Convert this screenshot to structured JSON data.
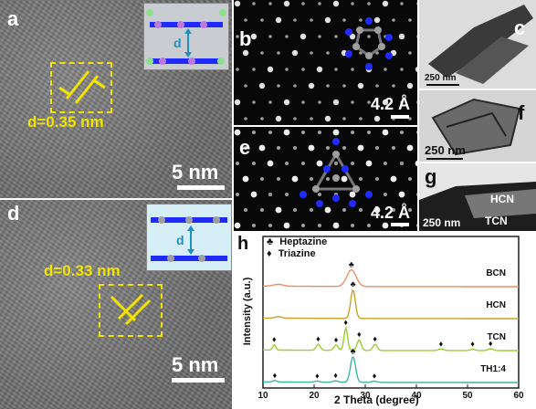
{
  "panels": {
    "a": {
      "label": "a",
      "d_label": "d=0.35 nm",
      "scale": "5 nm",
      "inset_d": "d"
    },
    "b": {
      "label": "b",
      "scale": "4.2 Å"
    },
    "c": {
      "label": "c",
      "scale": "250 nm"
    },
    "d": {
      "label": "d",
      "d_label": "d=0.33 nm",
      "scale": "5 nm",
      "inset_d": "d"
    },
    "e": {
      "label": "e",
      "scale": "4.2 Å"
    },
    "f": {
      "label": "f",
      "scale": "250 nm"
    },
    "g": {
      "label": "g",
      "scale": "250 nm",
      "hcn": "HCN",
      "tcn": "TCN"
    },
    "h": {
      "label": "h"
    }
  },
  "colors": {
    "annot_yellow": "#f2e400",
    "atom_blue": "#1f2bff",
    "atom_gray": "#a0a0a0"
  },
  "chart_data": {
    "type": "line",
    "xlabel": "2 Theta (degree)",
    "ylabel": "Intensity (a.u.)",
    "xlim": [
      10,
      60
    ],
    "xticks": [
      10,
      20,
      30,
      40,
      50,
      60
    ],
    "legend": [
      {
        "symbol": "♣",
        "name": "Heptazine"
      },
      {
        "symbol": "♦",
        "name": "Triazine"
      }
    ],
    "series": [
      {
        "name": "BCN",
        "color": "#ef8a63",
        "offset": 3,
        "peaks": [
          {
            "x": 27.3,
            "h": 0.55,
            "w": 0.9
          },
          {
            "x": 13.0,
            "h": 0.06,
            "w": 1.0
          }
        ],
        "markers": [
          {
            "x": 27.3,
            "symbol": "♣"
          }
        ]
      },
      {
        "name": "HCN",
        "color": "#c9a227",
        "offset": 2,
        "peaks": [
          {
            "x": 27.6,
            "h": 0.95,
            "w": 0.45
          },
          {
            "x": 13.0,
            "h": 0.05,
            "w": 0.6
          }
        ],
        "markers": [
          {
            "x": 27.6,
            "symbol": "♣"
          }
        ]
      },
      {
        "name": "TCN",
        "color": "#9acd32",
        "offset": 1,
        "peaks": [
          {
            "x": 12.2,
            "h": 0.18,
            "w": 0.3
          },
          {
            "x": 20.8,
            "h": 0.2,
            "w": 0.4
          },
          {
            "x": 24.3,
            "h": 0.18,
            "w": 0.4
          },
          {
            "x": 26.2,
            "h": 0.75,
            "w": 0.35
          },
          {
            "x": 28.8,
            "h": 0.35,
            "w": 0.4
          },
          {
            "x": 31.9,
            "h": 0.2,
            "w": 0.4
          },
          {
            "x": 44.8,
            "h": 0.05,
            "w": 0.5
          },
          {
            "x": 51.0,
            "h": 0.04,
            "w": 0.5
          },
          {
            "x": 54.5,
            "h": 0.06,
            "w": 0.5
          }
        ],
        "markers": [
          {
            "x": 12.2,
            "symbol": "♦"
          },
          {
            "x": 20.8,
            "symbol": "♦"
          },
          {
            "x": 24.3,
            "symbol": "♦"
          },
          {
            "x": 26.2,
            "symbol": "♦"
          },
          {
            "x": 28.8,
            "symbol": "♦"
          },
          {
            "x": 31.9,
            "symbol": "♦"
          },
          {
            "x": 44.8,
            "symbol": "♦"
          },
          {
            "x": 51.0,
            "symbol": "♦"
          },
          {
            "x": 54.5,
            "symbol": "♦"
          }
        ]
      },
      {
        "name": "TH1:4",
        "color": "#3cb4a0",
        "offset": 0,
        "peaks": [
          {
            "x": 12.3,
            "h": 0.05,
            "w": 0.4
          },
          {
            "x": 20.6,
            "h": 0.04,
            "w": 0.5
          },
          {
            "x": 24.2,
            "h": 0.05,
            "w": 0.5
          },
          {
            "x": 27.6,
            "h": 0.85,
            "w": 0.5
          },
          {
            "x": 31.8,
            "h": 0.04,
            "w": 0.5
          }
        ],
        "markers": [
          {
            "x": 12.3,
            "symbol": "♦"
          },
          {
            "x": 20.6,
            "symbol": "♦"
          },
          {
            "x": 24.2,
            "symbol": "♦"
          },
          {
            "x": 27.6,
            "symbol": "♣"
          },
          {
            "x": 31.8,
            "symbol": "♦"
          }
        ]
      }
    ]
  }
}
